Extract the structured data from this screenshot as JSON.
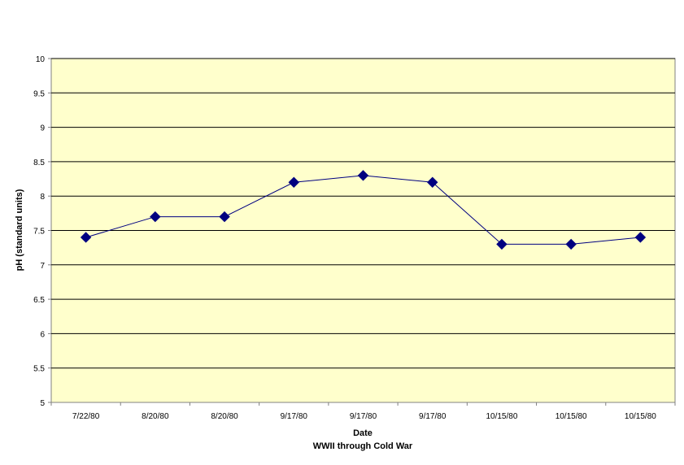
{
  "chart_data": {
    "type": "line",
    "title": "",
    "xlabel": "Date",
    "xlabel_sub": "WWII through Cold War",
    "ylabel": "pH (standard units)",
    "ylim": [
      5,
      10
    ],
    "ytick_step": 0.5,
    "yticks": [
      "5",
      "5.5",
      "6",
      "6.5",
      "7",
      "7.5",
      "8",
      "8.5",
      "9",
      "9.5",
      "10"
    ],
    "grid": true,
    "legend": "none",
    "categories": [
      "7/22/80",
      "8/20/80",
      "8/20/80",
      "9/17/80",
      "9/17/80",
      "9/17/80",
      "10/15/80",
      "10/15/80",
      "10/15/80"
    ],
    "series": [
      {
        "values": [
          7.4,
          7.7,
          7.7,
          8.2,
          8.3,
          8.2,
          7.3,
          7.3,
          7.4
        ],
        "color": "#000080",
        "marker": "diamond"
      }
    ],
    "plot_background": "#FFFFCC"
  }
}
